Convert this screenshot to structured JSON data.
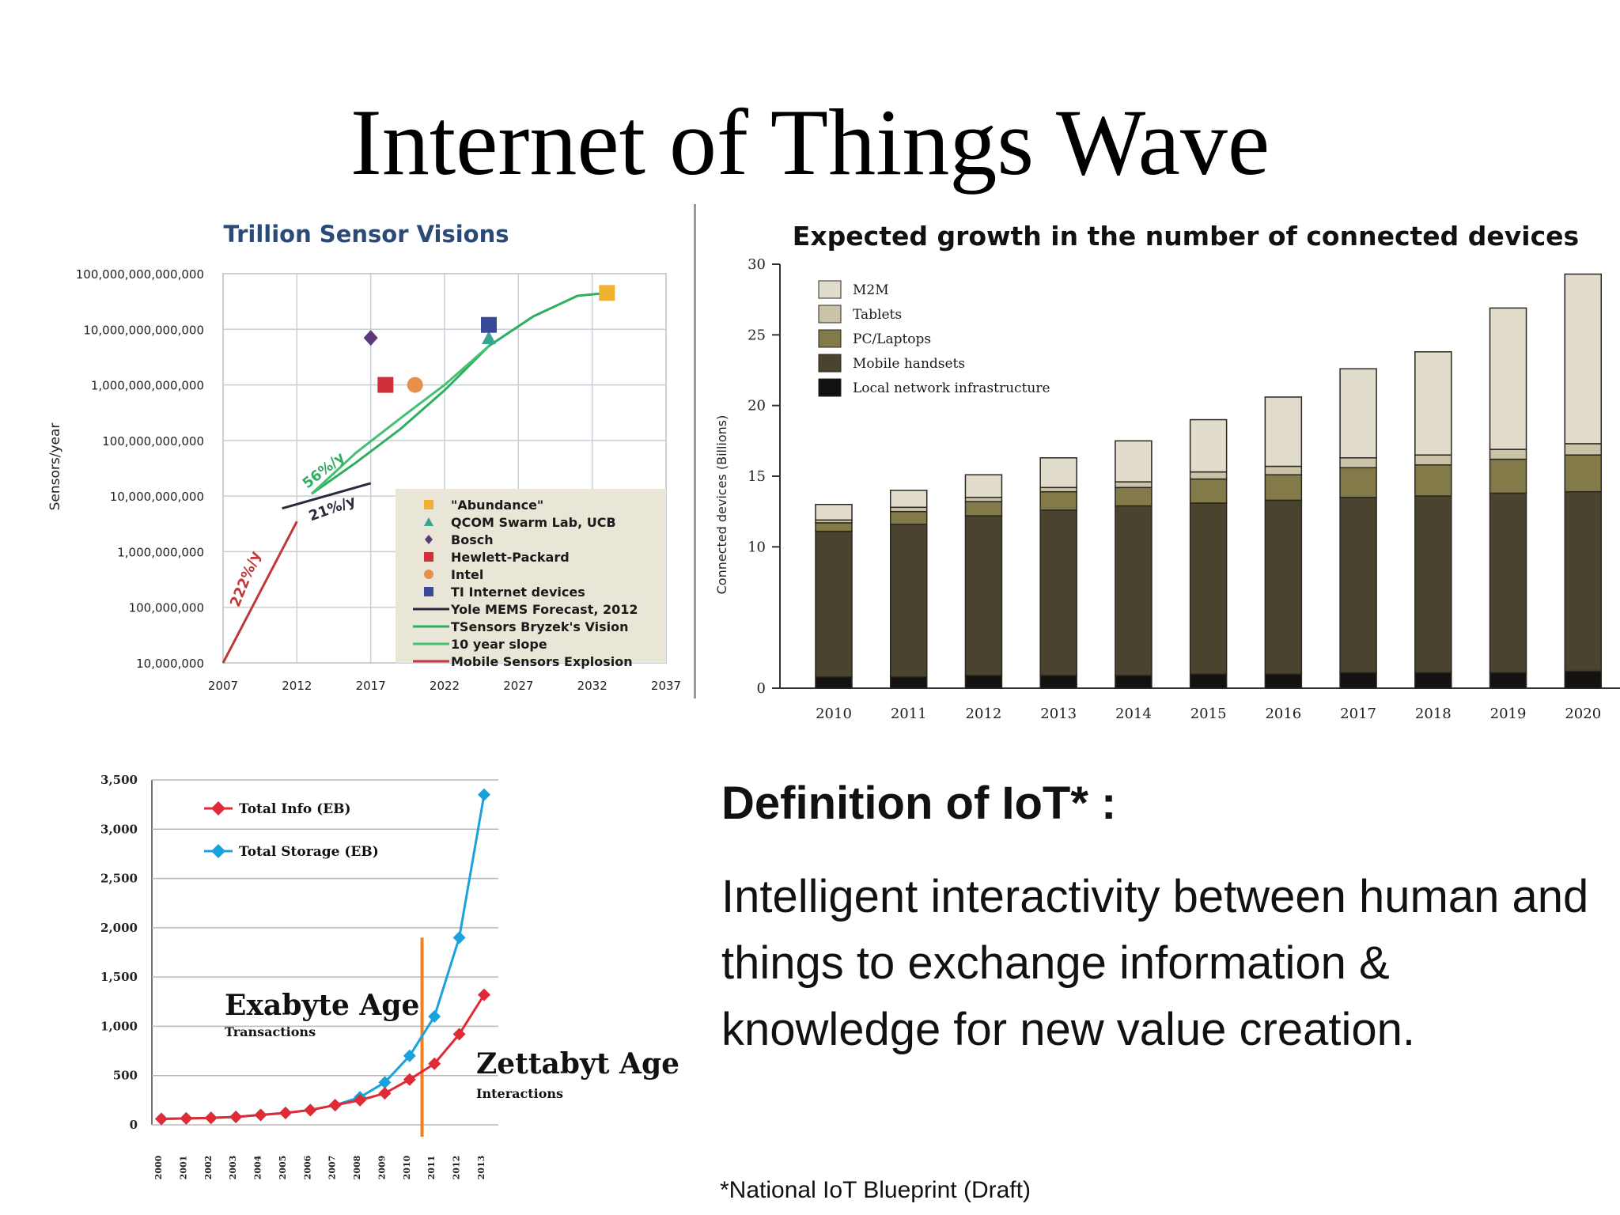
{
  "slide": {
    "title": "Internet of Things Wave",
    "definition_title": "Definition of IoT* :",
    "definition_body": "Intelligent interactivity between human and things to exchange information & knowledge for new value creation.",
    "footnote": "*National IoT Blueprint (Draft)"
  },
  "chart_data": [
    {
      "id": "trillion-sensor-visions",
      "type": "scatter",
      "title": "Trillion Sensor Visions",
      "ylabel": "Sensors/year",
      "xlabel": "",
      "yscale": "log",
      "xlim": [
        2007,
        2037
      ],
      "ylim": [
        10000000,
        100000000000000000
      ],
      "x_ticks": [
        2007,
        2012,
        2017,
        2022,
        2027,
        2032,
        2037
      ],
      "y_ticks": [
        "10,000,000",
        "100,000,000",
        "1,000,000,000",
        "10,000,000,000",
        "100,000,000,000",
        "1,000,000,000,000",
        "10,000,000,000,000",
        "100,000,000,000,000"
      ],
      "y_tick_values": [
        10000000,
        100000000,
        1000000000,
        10000000000,
        100000000000,
        1000000000000,
        10000000000000,
        100000000000000
      ],
      "grid": true,
      "legend_position": "bottom-right",
      "points": [
        {
          "name": "\"Abundance\"",
          "shape": "square",
          "color": "#f0b030",
          "x": 2033,
          "y": 45000000000000
        },
        {
          "name": "QCOM Swarm Lab, UCB",
          "shape": "triangle",
          "color": "#3aa58f",
          "x": 2025,
          "y": 7000000000000
        },
        {
          "name": "Bosch",
          "shape": "diamond",
          "color": "#5c3a7a",
          "x": 2017,
          "y": 7000000000000
        },
        {
          "name": "Hewlett-Packard",
          "shape": "square",
          "color": "#d0303a",
          "x": 2018,
          "y": 1000000000000
        },
        {
          "name": "Intel",
          "shape": "circle",
          "color": "#e8904a",
          "x": 2020,
          "y": 1000000000000
        },
        {
          "name": "TI Internet devices",
          "shape": "square",
          "color": "#3a4a9a",
          "x": 2025,
          "y": 12000000000000
        }
      ],
      "series": [
        {
          "name": "Yole MEMS Forecast, 2012",
          "color": "#2a2a3a",
          "x": [
            2011,
            2017
          ],
          "y": [
            6000000000,
            17000000000
          ]
        },
        {
          "name": "TSensors Bryzek's Vision",
          "color": "#2fae62",
          "x": [
            2013,
            2016,
            2019,
            2022,
            2025,
            2028,
            2031,
            2033
          ],
          "y": [
            11000000000,
            40000000000,
            160000000000,
            800000000000,
            5000000000000,
            17000000000000,
            40000000000000,
            45000000000000
          ]
        },
        {
          "name": "10 year slope",
          "color": "#44c070",
          "x": [
            2013,
            2016,
            2019,
            2022,
            2025
          ],
          "y": [
            11000000000,
            60000000000,
            250000000000,
            1000000000000,
            5000000000000
          ]
        },
        {
          "name": "Mobile Sensors Explosion",
          "color": "#c03838",
          "x": [
            2007,
            2012
          ],
          "y": [
            10000000,
            3500000000
          ]
        }
      ],
      "annotations": [
        {
          "text": "56%/y",
          "x": 2014,
          "y": 25000000000,
          "color": "#2fae62"
        },
        {
          "text": "21%/y",
          "x": 2014.5,
          "y": 5000000000,
          "color": "#2a2a3a"
        },
        {
          "text": "222%/y",
          "x": 2008.8,
          "y": 300000000,
          "color": "#c03838"
        }
      ]
    },
    {
      "id": "connected-devices",
      "type": "bar",
      "stacked": true,
      "title": "Expected growth in the number of connected devices",
      "ylabel": "Connected devices (Billions)",
      "ylim": [
        0,
        30
      ],
      "y_ticks": [
        0,
        10,
        15,
        20,
        25,
        30
      ],
      "legend_position": "top-left",
      "categories": [
        "2010",
        "2011",
        "2012",
        "2013",
        "2014",
        "2015",
        "2016",
        "2017",
        "2018",
        "2019",
        "2020"
      ],
      "series": [
        {
          "name": "Local network infrastructure",
          "color": "#141210",
          "values": [
            0.8,
            0.8,
            0.9,
            0.9,
            0.9,
            1.0,
            1.0,
            1.1,
            1.1,
            1.1,
            1.2
          ]
        },
        {
          "name": "Mobile handsets",
          "color": "#4a4330",
          "values": [
            10.3,
            10.8,
            11.3,
            11.7,
            12.0,
            12.1,
            12.3,
            12.4,
            12.5,
            12.7,
            12.7
          ]
        },
        {
          "name": "PC/Laptops",
          "color": "#837a4a",
          "values": [
            0.6,
            0.9,
            1.0,
            1.3,
            1.3,
            1.7,
            1.8,
            2.1,
            2.2,
            2.4,
            2.6
          ]
        },
        {
          "name": "Tablets",
          "color": "#cbc3a7",
          "values": [
            0.2,
            0.3,
            0.3,
            0.3,
            0.4,
            0.5,
            0.6,
            0.7,
            0.7,
            0.7,
            0.8
          ]
        },
        {
          "name": "M2M",
          "color": "#e1dccb",
          "values": [
            1.1,
            1.2,
            1.6,
            2.1,
            2.9,
            3.7,
            4.9,
            6.3,
            7.3,
            10.0,
            12.0
          ]
        }
      ]
    },
    {
      "id": "exabyte-zettabyte",
      "type": "line",
      "title": "",
      "xlabel": "",
      "ylabel": "",
      "ylim": [
        0,
        3500
      ],
      "y_ticks": [
        0,
        500,
        1000,
        1500,
        2000,
        2500,
        3000,
        3500
      ],
      "y_tick_labels": [
        "0",
        "500",
        "1,000",
        "1,500",
        "2,000",
        "2,500",
        "3,000",
        "3,500"
      ],
      "legend_position": "top-left",
      "x": [
        "2000",
        "2001",
        "2002",
        "2003",
        "2004",
        "2005",
        "2006",
        "2007",
        "2008",
        "2009",
        "2010",
        "2011",
        "2012",
        "2013"
      ],
      "series": [
        {
          "name": "Total Info (EB)",
          "color": "#e02a36",
          "values": [
            60,
            65,
            70,
            80,
            100,
            120,
            150,
            200,
            250,
            320,
            460,
            620,
            920,
            1320
          ]
        },
        {
          "name": "Total Storage (EB)",
          "color": "#1aa2dc",
          "values": [
            60,
            65,
            70,
            80,
            100,
            120,
            150,
            200,
            280,
            430,
            700,
            1100,
            1900,
            3350
          ]
        }
      ],
      "marker_line": {
        "x": "2010.5",
        "color": "#f08020"
      },
      "annotations": [
        {
          "text": "Exabyte Age",
          "subtext": "Transactions"
        },
        {
          "text": "Zettabyt Age",
          "subtext": "Interactions"
        }
      ]
    }
  ]
}
